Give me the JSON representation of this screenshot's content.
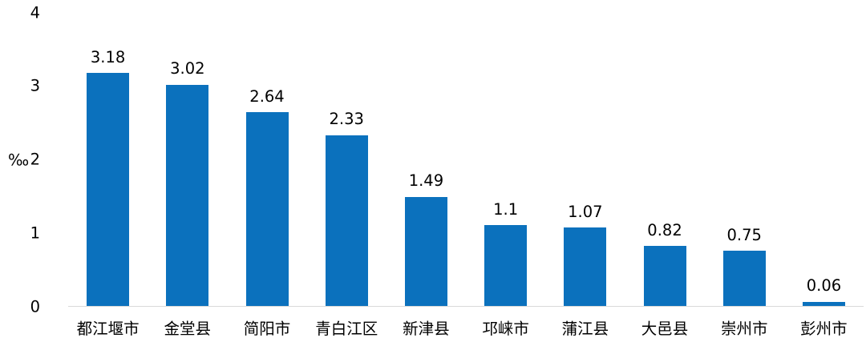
{
  "chart_data": {
    "type": "bar",
    "title": "",
    "xlabel": "",
    "ylabel": "‰",
    "categories": [
      "都江堰市",
      "金堂县",
      "简阳市",
      "青白江区",
      "新津县",
      "邛崃市",
      "蒲江县",
      "大邑县",
      "崇州市",
      "彭州市"
    ],
    "values": [
      3.18,
      3.02,
      2.64,
      2.33,
      1.49,
      1.1,
      1.07,
      0.82,
      0.75,
      0.06
    ],
    "value_labels": [
      "3.18",
      "3.02",
      "2.64",
      "2.33",
      "1.49",
      "1.1",
      "1.07",
      "0.82",
      "0.75",
      "0.06"
    ],
    "ylim": [
      0,
      4
    ],
    "yticks": [
      "0",
      "1",
      "2",
      "3",
      "4"
    ],
    "grid": false,
    "legend_position": "none",
    "bar_color": "#0b71bd",
    "axis_line_color": "#d9d9d9",
    "text_color": "#000000",
    "background_color": "#ffffff"
  }
}
